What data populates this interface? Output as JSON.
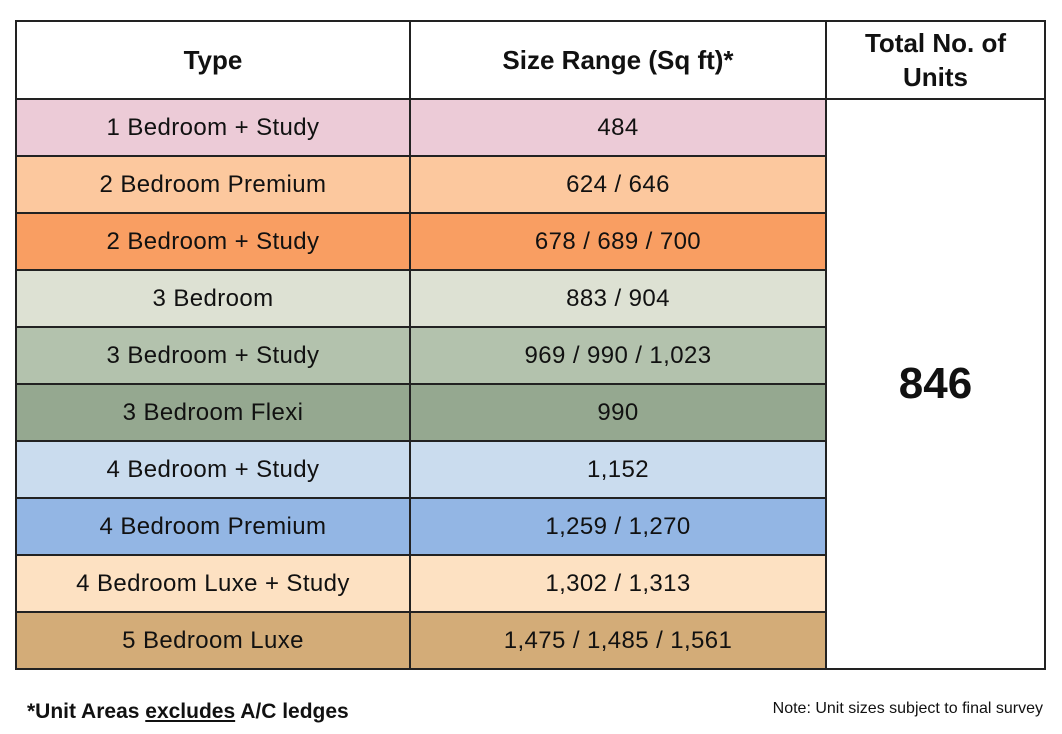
{
  "table": {
    "headers": {
      "type": "Type",
      "size": "Size Range (Sq ft)*",
      "total": "Total No. of Units"
    },
    "total_units": "846",
    "rows": [
      {
        "type": "1 Bedroom + Study",
        "size": "484",
        "color": "#eccbd7"
      },
      {
        "type": "2 Bedroom Premium",
        "size": "624 / 646",
        "color": "#fcc89e"
      },
      {
        "type": "2 Bedroom + Study",
        "size": "678 / 689 / 700",
        "color": "#f99e62"
      },
      {
        "type": "3 Bedroom",
        "size": "883 / 904",
        "color": "#dde1d3"
      },
      {
        "type": "3 Bedroom + Study",
        "size": "969 / 990 / 1,023",
        "color": "#b3c2ad"
      },
      {
        "type": "3 Bedroom Flexi",
        "size": "990",
        "color": "#95a890"
      },
      {
        "type": "4 Bedroom + Study",
        "size": "1,152",
        "color": "#cadcee"
      },
      {
        "type": "4 Bedroom Premium",
        "size": "1,259 / 1,270",
        "color": "#93b6e4"
      },
      {
        "type": "4 Bedroom Luxe + Study",
        "size": "1,302 / 1,313",
        "color": "#fde1c2"
      },
      {
        "type": "5 Bedroom Luxe",
        "size": "1,475 / 1,485 / 1,561",
        "color": "#d3ac78"
      }
    ]
  },
  "footnote": {
    "prefix": "*Unit Areas ",
    "emphasis": "excludes",
    "suffix": " A/C ledges"
  },
  "note": "Note: Unit sizes subject to final survey"
}
